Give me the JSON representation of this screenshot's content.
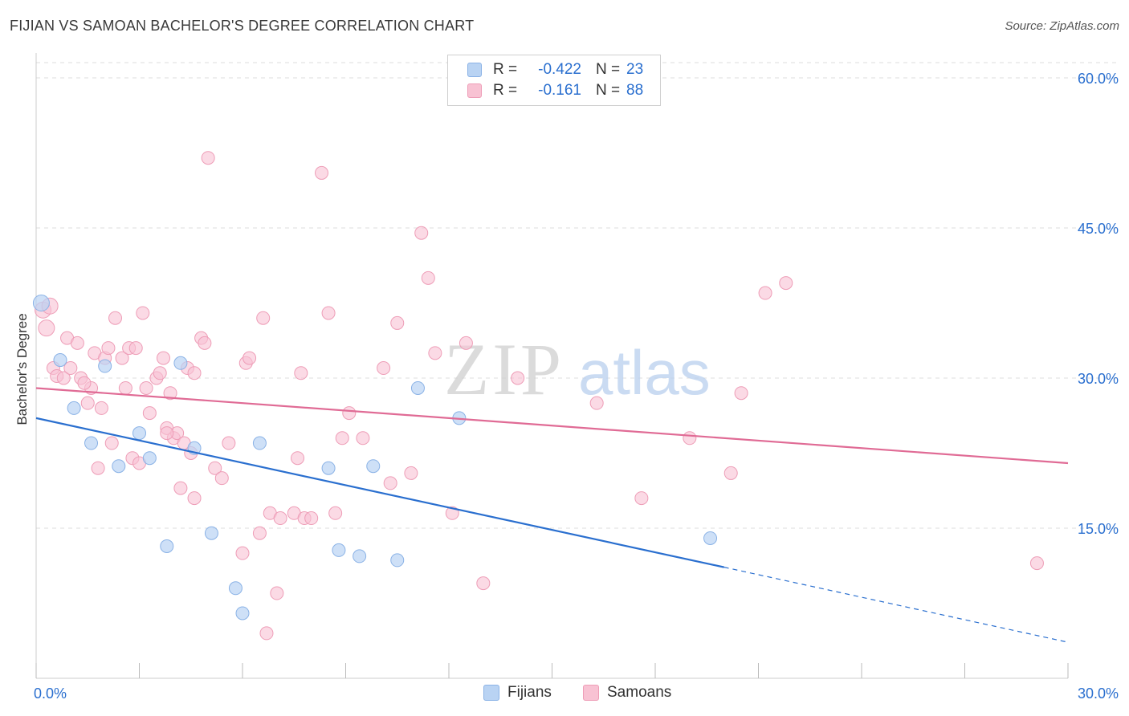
{
  "header": {
    "title": "FIJIAN VS SAMOAN BACHELOR'S DEGREE CORRELATION CHART",
    "source": "Source: ZipAtlas.com"
  },
  "legend": {
    "fijians": {
      "r_label": "R =",
      "r_value": "-0.422",
      "n_label": "N =",
      "n_value": "23"
    },
    "samoans": {
      "r_label": "R =",
      "r_value": "-0.161",
      "n_label": "N =",
      "n_value": "88"
    }
  },
  "bottom_legend": {
    "fijians": "Fijians",
    "samoans": "Samoans"
  },
  "watermark": {
    "zip": "ZIP",
    "atlas": "atlas"
  },
  "colors": {
    "fijian_fill": "#b9d3f3",
    "fijian_stroke": "#8ab2e6",
    "fijian_line": "#2a6fcf",
    "samoan_fill": "#f8c2d3",
    "samoan_stroke": "#ee9db7",
    "samoan_line": "#e06b95",
    "axis_label": "#2a6fcf",
    "grid": "#dddddd"
  },
  "chart_data": {
    "type": "scatter",
    "title": "FIJIAN VS SAMOAN BACHELOR'S DEGREE CORRELATION CHART",
    "xlabel": "",
    "ylabel": "Bachelor's Degree",
    "xlim": [
      0,
      30
    ],
    "ylim": [
      0,
      60
    ],
    "x_tick_labels": [
      "0.0%",
      "30.0%"
    ],
    "y_ticks": [
      15,
      30,
      45,
      60
    ],
    "y_tick_labels": [
      "15.0%",
      "30.0%",
      "45.0%",
      "60.0%"
    ],
    "series": [
      {
        "name": "Fijians",
        "points": [
          [
            0.15,
            37.5
          ],
          [
            0.7,
            31.8
          ],
          [
            1.1,
            27.0
          ],
          [
            1.6,
            23.5
          ],
          [
            2.0,
            31.2
          ],
          [
            2.4,
            21.2
          ],
          [
            3.0,
            24.5
          ],
          [
            3.3,
            22.0
          ],
          [
            3.8,
            13.2
          ],
          [
            4.2,
            31.5
          ],
          [
            4.6,
            23.0
          ],
          [
            5.1,
            14.5
          ],
          [
            5.8,
            9.0
          ],
          [
            6.5,
            23.5
          ],
          [
            6.0,
            6.5
          ],
          [
            8.5,
            21.0
          ],
          [
            8.8,
            12.8
          ],
          [
            9.4,
            12.2
          ],
          [
            9.8,
            21.2
          ],
          [
            10.5,
            11.8
          ],
          [
            11.1,
            29.0
          ],
          [
            12.3,
            26.0
          ],
          [
            19.6,
            14.0
          ]
        ],
        "trend": {
          "x0": 0.0,
          "y0": 26.0,
          "x1": 20.0,
          "y1": 11.1,
          "dash_to_x": 30.0,
          "dash_to_y": 3.6
        }
      },
      {
        "name": "Samoans",
        "points": [
          [
            0.2,
            36.8
          ],
          [
            0.3,
            35.0
          ],
          [
            0.4,
            37.2
          ],
          [
            0.5,
            31.0
          ],
          [
            0.6,
            30.2
          ],
          [
            0.8,
            30.0
          ],
          [
            0.9,
            34.0
          ],
          [
            1.0,
            31.0
          ],
          [
            1.2,
            33.5
          ],
          [
            1.3,
            30.0
          ],
          [
            1.5,
            27.5
          ],
          [
            1.6,
            29.0
          ],
          [
            1.7,
            32.5
          ],
          [
            1.8,
            21.0
          ],
          [
            1.9,
            27.0
          ],
          [
            2.0,
            32.0
          ],
          [
            2.2,
            23.5
          ],
          [
            2.3,
            36.0
          ],
          [
            2.5,
            32.0
          ],
          [
            2.6,
            29.0
          ],
          [
            2.7,
            33.0
          ],
          [
            2.8,
            22.0
          ],
          [
            2.9,
            33.0
          ],
          [
            3.0,
            21.5
          ],
          [
            3.1,
            36.5
          ],
          [
            3.2,
            29.0
          ],
          [
            3.3,
            26.5
          ],
          [
            3.5,
            30.0
          ],
          [
            3.6,
            30.5
          ],
          [
            3.7,
            32.0
          ],
          [
            3.8,
            25.0
          ],
          [
            3.9,
            28.5
          ],
          [
            4.0,
            24.0
          ],
          [
            4.1,
            24.5
          ],
          [
            4.2,
            19.0
          ],
          [
            4.3,
            23.5
          ],
          [
            4.4,
            31.0
          ],
          [
            4.5,
            22.5
          ],
          [
            4.6,
            18.0
          ],
          [
            4.8,
            34.0
          ],
          [
            4.9,
            33.5
          ],
          [
            5.0,
            52.0
          ],
          [
            5.2,
            21.0
          ],
          [
            5.4,
            20.0
          ],
          [
            5.6,
            23.5
          ],
          [
            6.0,
            12.5
          ],
          [
            6.1,
            31.5
          ],
          [
            6.2,
            32.0
          ],
          [
            6.5,
            14.5
          ],
          [
            6.6,
            36.0
          ],
          [
            6.8,
            16.5
          ],
          [
            7.0,
            8.5
          ],
          [
            7.1,
            16.0
          ],
          [
            7.5,
            16.5
          ],
          [
            7.6,
            22.0
          ],
          [
            7.7,
            30.5
          ],
          [
            7.8,
            16.0
          ],
          [
            8.0,
            16.0
          ],
          [
            8.3,
            50.5
          ],
          [
            8.5,
            36.5
          ],
          [
            8.7,
            16.5
          ],
          [
            8.9,
            24.0
          ],
          [
            9.1,
            26.5
          ],
          [
            9.5,
            24.0
          ],
          [
            10.1,
            31.0
          ],
          [
            10.3,
            19.5
          ],
          [
            10.5,
            35.5
          ],
          [
            10.9,
            20.5
          ],
          [
            11.2,
            44.5
          ],
          [
            11.4,
            40.0
          ],
          [
            11.6,
            32.5
          ],
          [
            12.1,
            16.5
          ],
          [
            12.5,
            33.5
          ],
          [
            13.0,
            9.5
          ],
          [
            14.0,
            30.0
          ],
          [
            16.3,
            27.5
          ],
          [
            17.6,
            18.0
          ],
          [
            19.0,
            24.0
          ],
          [
            20.2,
            20.5
          ],
          [
            20.5,
            28.5
          ],
          [
            21.2,
            38.5
          ],
          [
            21.8,
            39.5
          ],
          [
            29.1,
            11.5
          ],
          [
            6.7,
            4.5
          ],
          [
            3.8,
            24.5
          ],
          [
            1.4,
            29.5
          ],
          [
            2.1,
            33.0
          ],
          [
            4.6,
            30.5
          ]
        ],
        "trend": {
          "x0": 0.0,
          "y0": 29.0,
          "x1": 30.0,
          "y1": 21.5
        }
      }
    ]
  }
}
